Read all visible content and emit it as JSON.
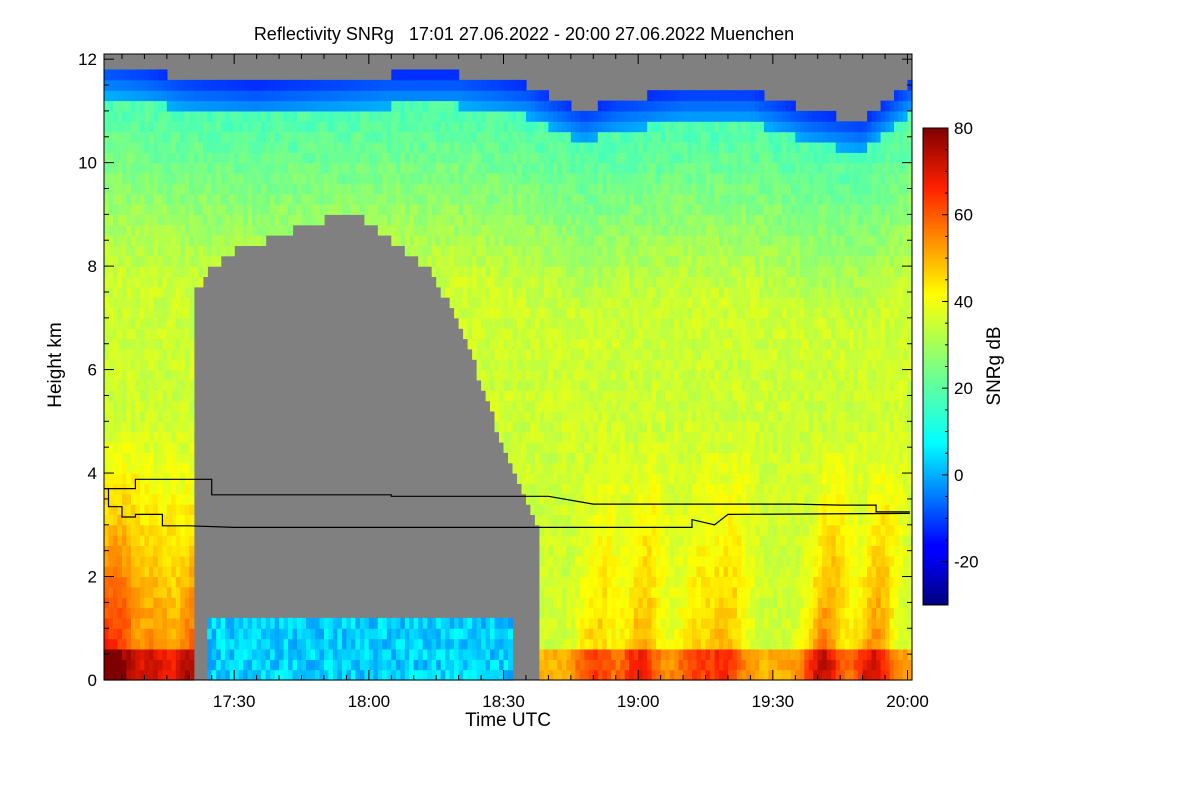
{
  "chart_data": {
    "type": "heatmap",
    "title": "Reflectivity SNRg   17:01 27.06.2022 - 20:00 27.06.2022 Muenchen",
    "xlabel": "Time UTC",
    "ylabel": "Height km",
    "x_range_utc": [
      "17:01",
      "20:01"
    ],
    "x_ticks": [
      {
        "label": "17:30",
        "minutes": 1050
      },
      {
        "label": "18:00",
        "minutes": 1080
      },
      {
        "label": "18:30",
        "minutes": 1110
      },
      {
        "label": "19:00",
        "minutes": 1140
      },
      {
        "label": "19:30",
        "minutes": 1170
      },
      {
        "label": "20:00",
        "minutes": 1200
      }
    ],
    "ylim": [
      0,
      12.1
    ],
    "y_ticks": [
      "0",
      "2",
      "4",
      "6",
      "8",
      "10",
      "12"
    ],
    "colorbar": {
      "label": "SNRg dB",
      "range": [
        -30,
        80
      ],
      "ticks": [
        "-20",
        "0",
        "20",
        "40",
        "60",
        "80"
      ],
      "colormap": "jet",
      "nodata_color": "#808080"
    },
    "overlay_lines": [
      {
        "color": "#000000",
        "points": [
          [
            1021,
            3.7
          ],
          [
            1028,
            3.7
          ],
          [
            1028,
            3.88
          ],
          [
            1045,
            3.88
          ],
          [
            1045,
            3.58
          ],
          [
            1085,
            3.58
          ],
          [
            1085,
            3.55
          ],
          [
            1120,
            3.55
          ],
          [
            1130,
            3.4
          ],
          [
            1175,
            3.4
          ],
          [
            1185,
            3.38
          ],
          [
            1193,
            3.38
          ],
          [
            1193,
            3.25
          ],
          [
            1200.5,
            3.25
          ]
        ]
      },
      {
        "color": "#000000",
        "points": [
          [
            1021,
            3.7
          ],
          [
            1022,
            3.7
          ],
          [
            1022,
            3.35
          ],
          [
            1025,
            3.35
          ],
          [
            1025,
            3.15
          ],
          [
            1028,
            3.15
          ],
          [
            1028,
            3.2
          ],
          [
            1034,
            3.2
          ],
          [
            1034,
            2.98
          ],
          [
            1040,
            2.98
          ],
          [
            1050,
            2.95
          ],
          [
            1140,
            2.95
          ],
          [
            1152,
            2.95
          ],
          [
            1152,
            3.1
          ],
          [
            1157,
            3.0
          ],
          [
            1160,
            3.2
          ],
          [
            1200.5,
            3.22
          ]
        ]
      }
    ]
  }
}
